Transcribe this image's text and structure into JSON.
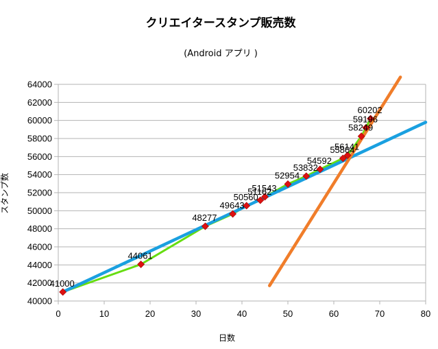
{
  "chart_data": {
    "type": "scatter",
    "title": "クリエイタースタンプ販売数",
    "subtitle": "(Android アプリ )",
    "xlabel": "日数",
    "ylabel": "スタンプ数",
    "xlim": [
      0,
      80
    ],
    "ylim": [
      40000,
      64000
    ],
    "xticks": [
      0,
      10,
      20,
      30,
      40,
      50,
      60,
      70,
      80
    ],
    "yticks": [
      40000,
      42000,
      44000,
      46000,
      48000,
      50000,
      52000,
      54000,
      56000,
      58000,
      60000,
      62000,
      64000
    ],
    "grid": "horizontal",
    "legend": "none",
    "series": [
      {
        "type": "line+markers",
        "color": "#66dd11",
        "marker_color": "#dd1111",
        "points": [
          {
            "x": 1,
            "y": 41000,
            "label": "41000"
          },
          {
            "x": 18,
            "y": 44061,
            "label": "44061"
          },
          {
            "x": 32,
            "y": 48277,
            "label": "48277"
          },
          {
            "x": 38,
            "y": 49643,
            "label": "49643"
          },
          {
            "x": 41,
            "y": 50560,
            "label": "50560"
          },
          {
            "x": 44,
            "y": 51162,
            "label": "51162"
          },
          {
            "x": 45,
            "y": 51543,
            "label": "51543"
          },
          {
            "x": 50,
            "y": 52954,
            "label": "52954"
          },
          {
            "x": 54,
            "y": 53832,
            "label": "53832"
          },
          {
            "x": 57,
            "y": 54592,
            "label": "54592"
          },
          {
            "x": 62,
            "y": 55804,
            "label": "55804"
          },
          {
            "x": 63,
            "y": 56141,
            "label": "56141"
          },
          {
            "x": 66,
            "y": 58249,
            "label": "58249"
          },
          {
            "x": 67,
            "y": 59196,
            "label": "59196"
          },
          {
            "x": 68,
            "y": 60202,
            "label": "60202"
          }
        ]
      }
    ],
    "trendlines": [
      {
        "type": "linear",
        "color": "#1aa0e0",
        "x": [
          1,
          80
        ],
        "y": [
          41000,
          59800
        ]
      },
      {
        "type": "linear",
        "color": "#f07d2a",
        "x": [
          46,
          74.5
        ],
        "y": [
          41700,
          64800
        ]
      }
    ]
  }
}
